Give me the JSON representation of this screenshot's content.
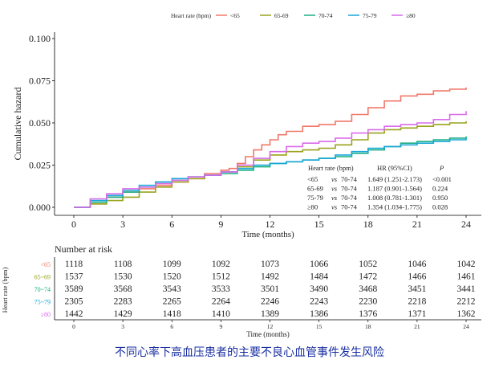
{
  "chart_data": {
    "type": "line",
    "title": "",
    "xlabel": "Time (months)",
    "ylabel": "Cumulative hazard",
    "xlim": [
      0,
      24
    ],
    "ylim": [
      0,
      0.1
    ],
    "x_ticks": [
      0,
      3,
      6,
      9,
      12,
      15,
      18,
      21,
      24
    ],
    "y_ticks": [
      0.0,
      0.025,
      0.05,
      0.075,
      0.1
    ],
    "y_tick_labels": [
      "0.000",
      "0.025",
      "0.050",
      "0.075",
      "0.100"
    ],
    "legend_title": "Heart rate (bpm)",
    "legend_position": "top",
    "series": [
      {
        "name": "<65",
        "color": "#F07868",
        "x": [
          0,
          1,
          2,
          3,
          4,
          5,
          6,
          7,
          8,
          9,
          9.5,
          10,
          10.5,
          11,
          11.5,
          12,
          12.5,
          13,
          14,
          15,
          16,
          17,
          18,
          19,
          20,
          21,
          22,
          23,
          24
        ],
        "y": [
          0,
          0.002,
          0.006,
          0.009,
          0.011,
          0.013,
          0.015,
          0.017,
          0.02,
          0.022,
          0.023,
          0.026,
          0.03,
          0.034,
          0.037,
          0.04,
          0.043,
          0.045,
          0.048,
          0.049,
          0.051,
          0.055,
          0.059,
          0.063,
          0.066,
          0.067,
          0.069,
          0.07,
          0.071
        ]
      },
      {
        "name": "65-69",
        "color": "#9AA21C",
        "x": [
          0,
          1,
          2,
          3,
          4,
          5,
          6,
          7,
          8,
          9,
          10,
          11,
          12,
          13,
          14,
          15,
          16,
          17,
          18,
          19,
          20,
          21,
          22,
          23,
          24
        ],
        "y": [
          0,
          0.002,
          0.004,
          0.006,
          0.009,
          0.012,
          0.015,
          0.017,
          0.019,
          0.021,
          0.024,
          0.028,
          0.031,
          0.033,
          0.034,
          0.035,
          0.037,
          0.04,
          0.044,
          0.046,
          0.047,
          0.048,
          0.049,
          0.05,
          0.051
        ]
      },
      {
        "name": "70-74",
        "color": "#1BAF84",
        "x": [
          0,
          1,
          2,
          3,
          4,
          5,
          6,
          7,
          8,
          9,
          10,
          11,
          12,
          13,
          14,
          15,
          16,
          17,
          18,
          19,
          20,
          21,
          22,
          23,
          24
        ],
        "y": [
          0,
          0.003,
          0.006,
          0.009,
          0.012,
          0.015,
          0.017,
          0.018,
          0.019,
          0.02,
          0.022,
          0.024,
          0.026,
          0.027,
          0.028,
          0.029,
          0.03,
          0.032,
          0.034,
          0.036,
          0.038,
          0.039,
          0.04,
          0.041,
          0.042
        ]
      },
      {
        "name": "75-79",
        "color": "#18A7D8",
        "x": [
          0,
          1,
          2,
          3,
          4,
          5,
          6,
          7,
          8,
          9,
          10,
          11,
          12,
          13,
          14,
          15,
          16,
          17,
          18,
          19,
          20,
          21,
          22,
          23,
          24
        ],
        "y": [
          0,
          0.004,
          0.007,
          0.01,
          0.013,
          0.015,
          0.017,
          0.018,
          0.019,
          0.021,
          0.023,
          0.025,
          0.026,
          0.027,
          0.028,
          0.029,
          0.031,
          0.033,
          0.035,
          0.036,
          0.037,
          0.038,
          0.039,
          0.04,
          0.041
        ]
      },
      {
        "name": "≥80",
        "color": "#D96BEA",
        "x": [
          0,
          1,
          2,
          3,
          4,
          5,
          6,
          7,
          8,
          9,
          10,
          11,
          12,
          13,
          14,
          15,
          16,
          17,
          18,
          19,
          20,
          21,
          22,
          23,
          24
        ],
        "y": [
          0,
          0.005,
          0.008,
          0.011,
          0.012,
          0.014,
          0.016,
          0.018,
          0.019,
          0.021,
          0.025,
          0.029,
          0.033,
          0.036,
          0.038,
          0.039,
          0.041,
          0.044,
          0.046,
          0.048,
          0.049,
          0.05,
          0.052,
          0.055,
          0.057
        ]
      }
    ],
    "hr_table": {
      "headers": [
        "Heart rate (bpm)",
        "HR (95%CI)",
        "P"
      ],
      "rows": [
        {
          "group": "<65",
          "vs": "vs",
          "ref": "70-74",
          "hr": "1.649 (1.251-2.173)",
          "p": "<0.001"
        },
        {
          "group": "65-69",
          "vs": "vs",
          "ref": "70-74",
          "hr": "1.187 (0.901-1.564)",
          "p": "0.224"
        },
        {
          "group": "75-79",
          "vs": "vs",
          "ref": "70-74",
          "hr": "1.008 (0.781-1.301)",
          "p": "0.950"
        },
        {
          "group": "≥80",
          "vs": "vs",
          "ref": "70-74",
          "hr": "1.354 (1.034-1.775)",
          "p": "0.028"
        }
      ]
    },
    "risk_table": {
      "title": "Number at risk",
      "ylabel": "Heart rate (bpm)",
      "xlabel": "Time (months)",
      "times": [
        0,
        3,
        6,
        9,
        12,
        15,
        18,
        21,
        24
      ],
      "rows": [
        {
          "name": "<65",
          "values": [
            1118,
            1108,
            1099,
            1092,
            1073,
            1066,
            1052,
            1046,
            1042
          ]
        },
        {
          "name": "65~69",
          "values": [
            1537,
            1530,
            1520,
            1512,
            1492,
            1484,
            1472,
            1466,
            1461
          ]
        },
        {
          "name": "70~74",
          "values": [
            3589,
            3568,
            3543,
            3533,
            3501,
            3490,
            3468,
            3451,
            3441
          ]
        },
        {
          "name": "75~79",
          "values": [
            2305,
            2283,
            2265,
            2264,
            2246,
            2243,
            2230,
            2218,
            2212
          ]
        },
        {
          "name": "≥80",
          "values": [
            1442,
            1429,
            1418,
            1410,
            1389,
            1386,
            1376,
            1371,
            1362
          ]
        }
      ]
    }
  },
  "caption": "不同心率下高血压患者的主要不良心血管事件发生风险"
}
